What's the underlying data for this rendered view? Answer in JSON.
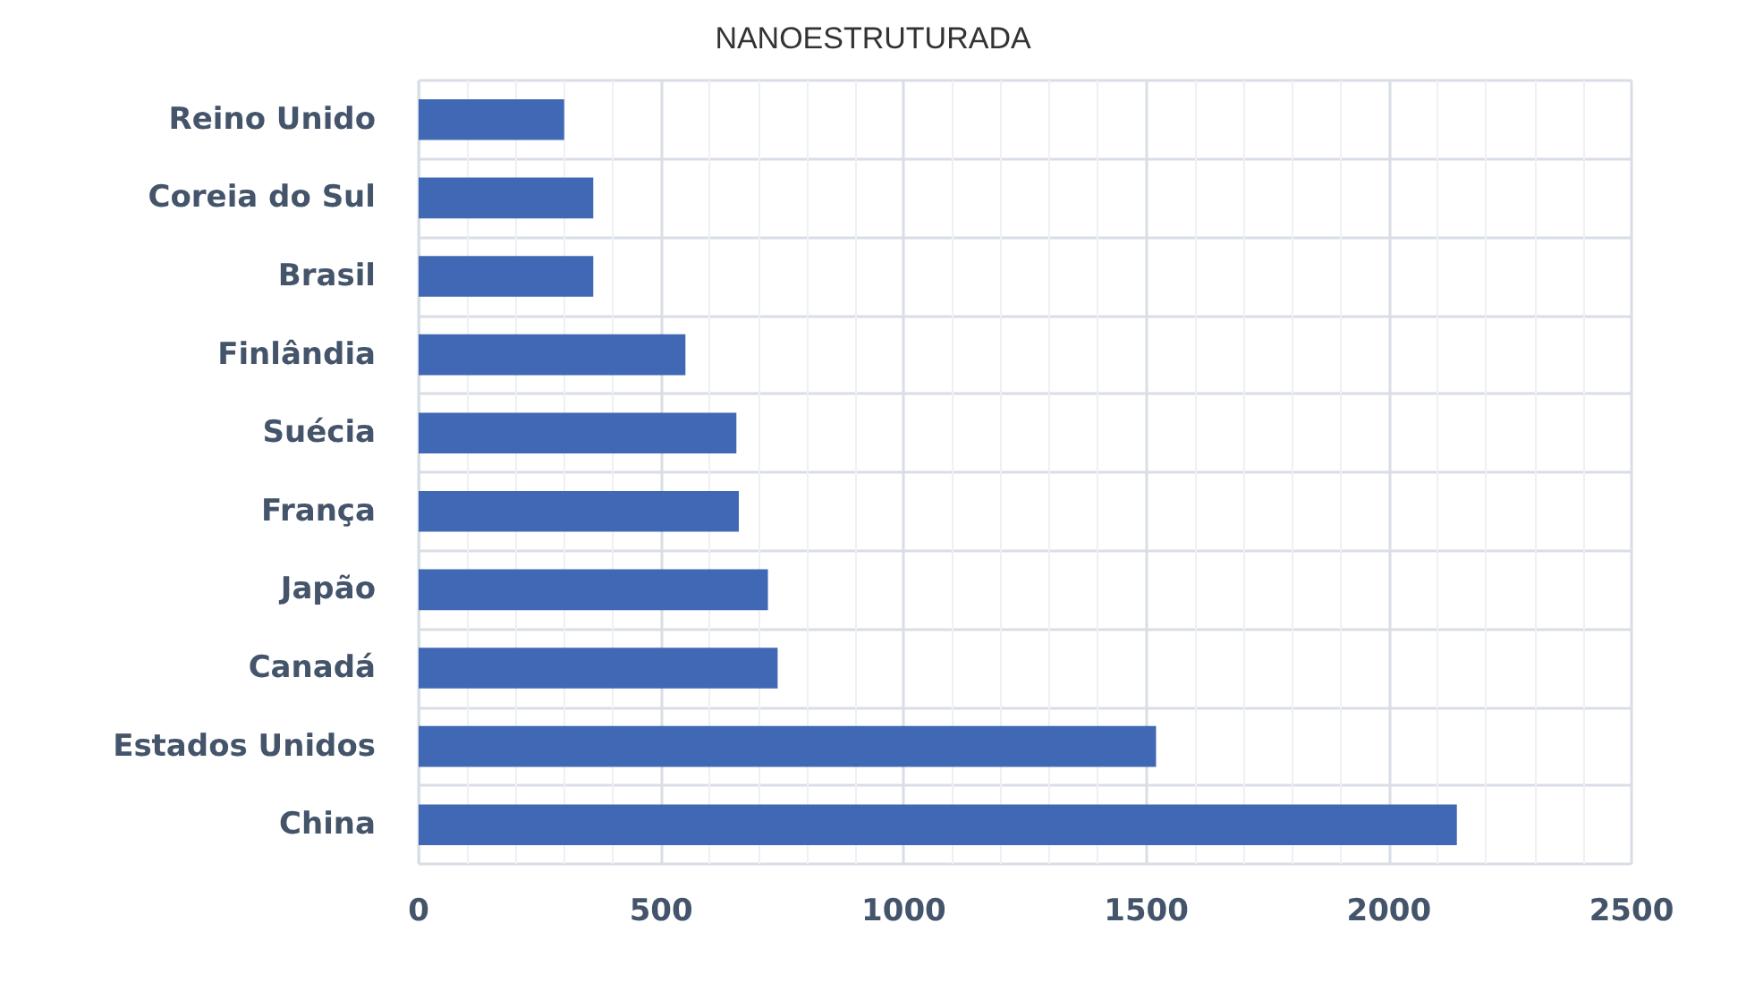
{
  "chart_data": {
    "type": "bar",
    "title": "NANOESTRUTURADA",
    "orientation": "horizontal",
    "categories": [
      "Reino Unido",
      "Coreia do Sul",
      "Brasil",
      "Finlândia",
      "Suécia",
      "França",
      "Japão",
      "Canadá",
      "Estados Unidos",
      "China"
    ],
    "values": [
      300,
      360,
      360,
      550,
      655,
      660,
      720,
      740,
      1520,
      2140
    ],
    "color": "#4068b4",
    "xlim": [
      0,
      2500
    ],
    "xticks": [
      0,
      500,
      1000,
      1500,
      2000,
      2500
    ],
    "grid": true
  }
}
